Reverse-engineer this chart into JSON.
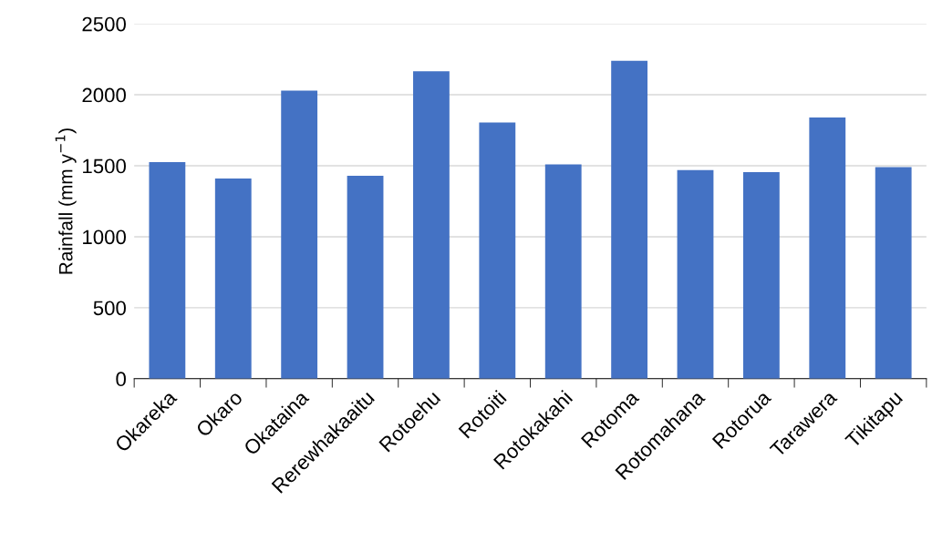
{
  "chart_data": {
    "type": "bar",
    "ylabel": "Rainfall (mm y$^{−1}$)",
    "categories": [
      "Okareka",
      "Okaro",
      "Okataina",
      "Rerewhakaaitu",
      "Rotoehu",
      "Rotoiti",
      "Rotokakahi",
      "Rotoma",
      "Rotomahana",
      "Rotorua",
      "Tarawera",
      "Tikitapu"
    ],
    "values": [
      1525,
      1410,
      2030,
      1430,
      2165,
      1805,
      1510,
      2240,
      1470,
      1455,
      1840,
      1490
    ],
    "color": "#4472c4",
    "ylim": [
      0,
      2500
    ],
    "yticks": [
      0,
      500,
      1000,
      1500,
      2000,
      2500
    ],
    "grid": "y"
  }
}
